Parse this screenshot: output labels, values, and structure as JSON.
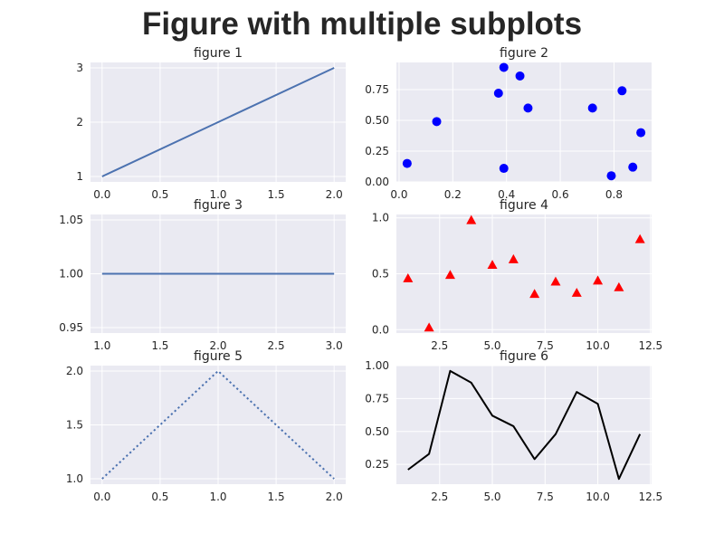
{
  "title": "Figure with multiple subplots",
  "colors": {
    "axes_bg": "#eaeaf2",
    "grid": "#ffffff",
    "line_default": "#4c72b0",
    "scatter_blue": "#0000ff",
    "marker_red": "#ff0000",
    "line_black": "#000000",
    "text": "#262626"
  },
  "chart_data": [
    {
      "type": "line",
      "title": "figure 1",
      "x": [
        0,
        1,
        2
      ],
      "y": [
        1,
        2,
        3
      ],
      "line_style": "solid",
      "color": "#4c72b0",
      "xlim": [
        -0.1,
        2.1
      ],
      "ylim": [
        0.9,
        3.1
      ],
      "xticks": [
        0.0,
        0.5,
        1.0,
        1.5,
        2.0
      ],
      "xtick_labels": [
        "0.0",
        "0.5",
        "1.0",
        "1.5",
        "2.0"
      ],
      "yticks": [
        1,
        2,
        3
      ],
      "ytick_labels": [
        "1",
        "2",
        "3"
      ],
      "grid": true
    },
    {
      "type": "scatter",
      "title": "figure 2",
      "x": [
        0.03,
        0.14,
        0.37,
        0.39,
        0.39,
        0.45,
        0.48,
        0.72,
        0.79,
        0.83,
        0.87,
        0.9
      ],
      "y": [
        0.15,
        0.49,
        0.72,
        0.93,
        0.11,
        0.86,
        0.6,
        0.6,
        0.05,
        0.74,
        0.12,
        0.4
      ],
      "marker": "circle",
      "color": "#0000ff",
      "xlim": [
        -0.01,
        0.94
      ],
      "ylim": [
        0.0,
        0.97
      ],
      "xticks": [
        0.0,
        0.2,
        0.4,
        0.6,
        0.8
      ],
      "xtick_labels": [
        "0.0",
        "0.2",
        "0.4",
        "0.6",
        "0.8"
      ],
      "yticks": [
        0.0,
        0.25,
        0.5,
        0.75
      ],
      "ytick_labels": [
        "0.00",
        "0.25",
        "0.50",
        "0.75"
      ],
      "grid": true
    },
    {
      "type": "line",
      "title": "figure 3",
      "x": [
        1,
        2,
        3
      ],
      "y": [
        1,
        1,
        1
      ],
      "line_style": "solid",
      "color": "#4c72b0",
      "xlim": [
        0.9,
        3.1
      ],
      "ylim": [
        0.945,
        1.055
      ],
      "xticks": [
        1.0,
        1.5,
        2.0,
        2.5,
        3.0
      ],
      "xtick_labels": [
        "1.0",
        "1.5",
        "2.0",
        "2.5",
        "3.0"
      ],
      "yticks": [
        0.95,
        1.0,
        1.05
      ],
      "ytick_labels": [
        "0.95",
        "1.00",
        "1.05"
      ],
      "grid": true
    },
    {
      "type": "scatter",
      "title": "figure 4",
      "x": [
        1,
        2,
        3,
        4,
        5,
        6,
        7,
        8,
        9,
        10,
        11,
        12
      ],
      "y": [
        0.46,
        0.02,
        0.49,
        0.98,
        0.58,
        0.63,
        0.32,
        0.43,
        0.33,
        0.44,
        0.38,
        0.81
      ],
      "marker": "triangle",
      "color": "#ff0000",
      "xlim": [
        0.45,
        12.55
      ],
      "ylim": [
        -0.03,
        1.03
      ],
      "xticks": [
        2.5,
        5.0,
        7.5,
        10.0,
        12.5
      ],
      "xtick_labels": [
        "2.5",
        "5.0",
        "7.5",
        "10.0",
        "12.5"
      ],
      "yticks": [
        0.0,
        0.5,
        1.0
      ],
      "ytick_labels": [
        "0.0",
        "0.5",
        "1.0"
      ],
      "grid": true
    },
    {
      "type": "line",
      "title": "figure 5",
      "x": [
        0,
        1,
        2
      ],
      "y": [
        1,
        2,
        1
      ],
      "line_style": "dotted",
      "color": "#4c72b0",
      "xlim": [
        -0.1,
        2.1
      ],
      "ylim": [
        0.95,
        2.05
      ],
      "xticks": [
        0.0,
        0.5,
        1.0,
        1.5,
        2.0
      ],
      "xtick_labels": [
        "0.0",
        "0.5",
        "1.0",
        "1.5",
        "2.0"
      ],
      "yticks": [
        1.0,
        1.5,
        2.0
      ],
      "ytick_labels": [
        "1.0",
        "1.5",
        "2.0"
      ],
      "grid": true
    },
    {
      "type": "line",
      "title": "figure 6",
      "x": [
        1,
        2,
        3,
        4,
        5,
        6,
        7,
        8,
        9,
        10,
        11,
        12
      ],
      "y": [
        0.21,
        0.33,
        0.96,
        0.87,
        0.62,
        0.54,
        0.29,
        0.48,
        0.8,
        0.71,
        0.14,
        0.48
      ],
      "line_style": "solid",
      "color": "#000000",
      "xlim": [
        0.45,
        12.55
      ],
      "ylim": [
        0.1,
        1.0
      ],
      "xticks": [
        2.5,
        5.0,
        7.5,
        10.0,
        12.5
      ],
      "xtick_labels": [
        "2.5",
        "5.0",
        "7.5",
        "10.0",
        "12.5"
      ],
      "yticks": [
        0.25,
        0.5,
        0.75,
        1.0
      ],
      "ytick_labels": [
        "0.25",
        "0.50",
        "0.75",
        "1.00"
      ],
      "grid": true
    }
  ]
}
